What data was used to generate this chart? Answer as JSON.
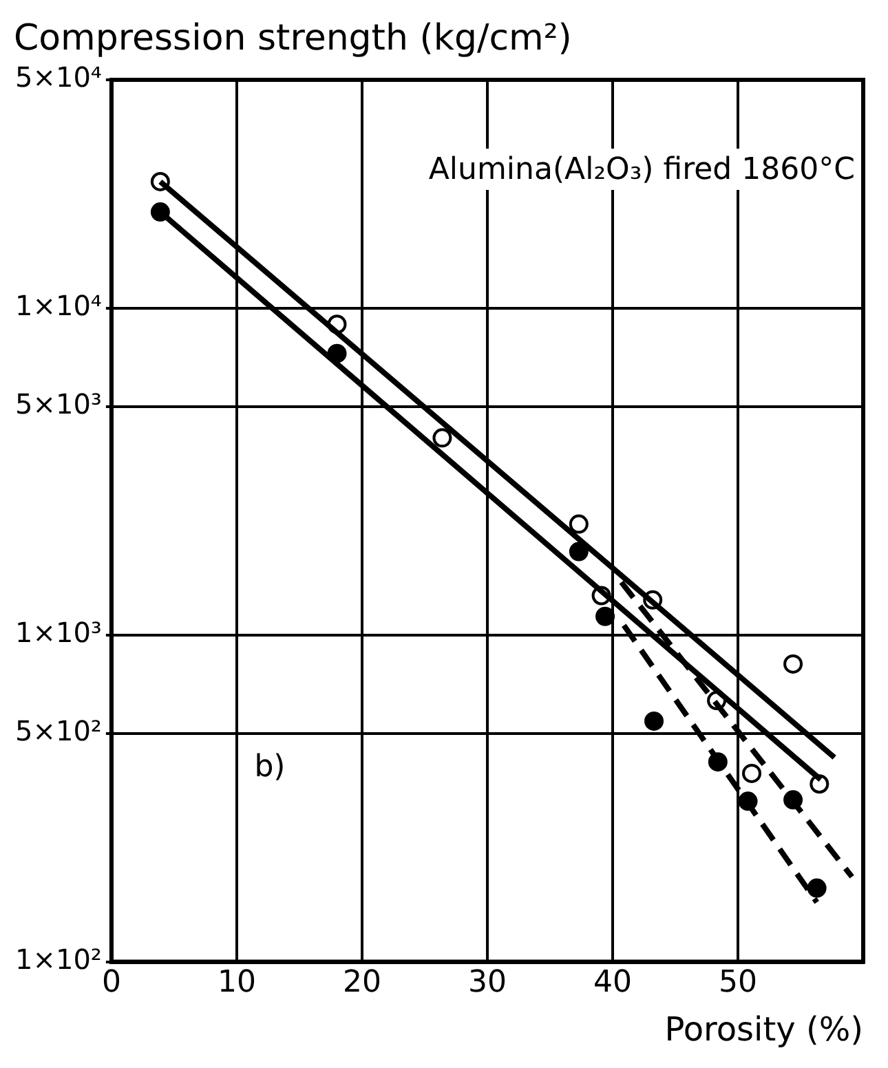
{
  "chart_data": {
    "type": "scatter",
    "ylabel": "Compression strength (kg/cm²)",
    "xlabel": "Porosity (%)",
    "annotations": [
      "Alumina(Al₂O₃) fired 1860°C",
      "b)"
    ],
    "xlim": [
      0,
      60
    ],
    "xticks": [
      0,
      10,
      20,
      30,
      40,
      50
    ],
    "ylim": [
      100,
      50000
    ],
    "log": "y",
    "yticks": [
      {
        "value": 50000,
        "label": "5×10⁴"
      },
      {
        "value": 10000,
        "label": "1×10⁴"
      },
      {
        "value": 5000,
        "label": "5×10³"
      },
      {
        "value": 1000,
        "label": "1×10³"
      },
      {
        "value": 500,
        "label": "5×10²"
      },
      {
        "value": 100,
        "label": "1×10²"
      }
    ],
    "grid": true,
    "legend": false,
    "marker": "circle",
    "series": [
      {
        "type": "line",
        "color": "#000000",
        "marker": "none",
        "line_style": "solid",
        "x": [
          3.9,
          57.7
        ],
        "values": [
          24400,
          422
        ]
      },
      {
        "type": "line",
        "color": "#000000",
        "marker": "none",
        "line_style": "solid",
        "x": [
          3.9,
          56.6
        ],
        "values": [
          19700,
          361
        ]
      },
      {
        "type": "line",
        "color": "#000000",
        "marker": "none",
        "line_style": "dashed",
        "x": [
          40.7,
          59.1
        ],
        "values": [
          1450,
          182
        ]
      },
      {
        "type": "line",
        "color": "#000000",
        "marker": "none",
        "line_style": "dashed",
        "x": [
          40.9,
          56.3
        ],
        "values": [
          1070,
          152
        ]
      },
      {
        "color": "#ffffff",
        "x": [
          3.9,
          18.0,
          26.4,
          37.3,
          39.1,
          43.2,
          48.3,
          54.4,
          51.1,
          56.5
        ],
        "values": [
          24400,
          8930,
          4010,
          2185,
          1320,
          1280,
          630,
          815,
          377,
          350
        ]
      },
      {
        "color": "#000000",
        "x": [
          3.9,
          18.0,
          37.3,
          39.4,
          43.3,
          48.4,
          50.8,
          54.4,
          56.3
        ],
        "values": [
          19700,
          7270,
          1800,
          1140,
          545,
          409,
          310,
          313,
          168
        ]
      }
    ]
  }
}
